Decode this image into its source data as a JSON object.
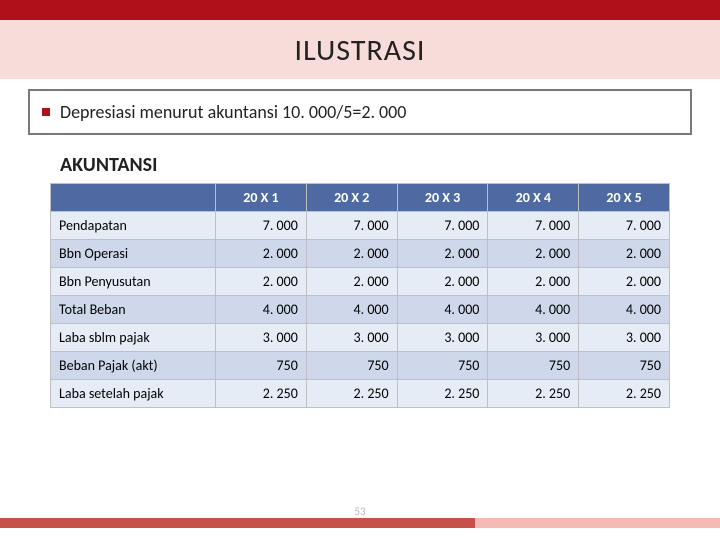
{
  "colors": {
    "top_bar": "#b01017",
    "title_band_bg": "#f7dcd9",
    "title_text": "#222222",
    "bullet_border": "#7a7a7a",
    "bullet_marker": "#b01017",
    "bullet_text": "#222222",
    "section_text": "#222222",
    "table_header_bg": "#4f6aa3",
    "row_even_bg": "#e6ecf5",
    "row_odd_bg": "#ced8ea",
    "footer_light": "#f6b9b6",
    "footer_dark": "#c8504b",
    "page_num": "#bbbbbb"
  },
  "title": "ILUSTRASI",
  "bullet": "Depresiasi menurut akuntansi 10. 000/5=2. 000",
  "section": "AKUNTANSI",
  "table": {
    "columns": [
      "20 X 1",
      "20 X 2",
      "20 X 3",
      "20 X 4",
      "20 X 5"
    ],
    "rows": [
      {
        "label": "Pendapatan",
        "values": [
          "7. 000",
          "7. 000",
          "7. 000",
          "7. 000",
          "7. 000"
        ]
      },
      {
        "label": "Bbn Operasi",
        "values": [
          "2. 000",
          "2. 000",
          "2. 000",
          "2. 000",
          "2. 000"
        ]
      },
      {
        "label": "Bbn Penyusutan",
        "values": [
          "2. 000",
          "2. 000",
          "2. 000",
          "2. 000",
          "2. 000"
        ]
      },
      {
        "label": "Total Beban",
        "values": [
          "4. 000",
          "4. 000",
          "4. 000",
          "4. 000",
          "4. 000"
        ]
      },
      {
        "label": "Laba sblm pajak",
        "values": [
          "3. 000",
          "3. 000",
          "3. 000",
          "3. 000",
          "3. 000"
        ]
      },
      {
        "label": "Beban Pajak (akt)",
        "values": [
          "750",
          "750",
          "750",
          "750",
          "750"
        ]
      },
      {
        "label": "Laba setelah pajak",
        "values": [
          "2. 250",
          "2. 250",
          "2. 250",
          "2. 250",
          "2. 250"
        ]
      }
    ]
  },
  "page_number": "53"
}
